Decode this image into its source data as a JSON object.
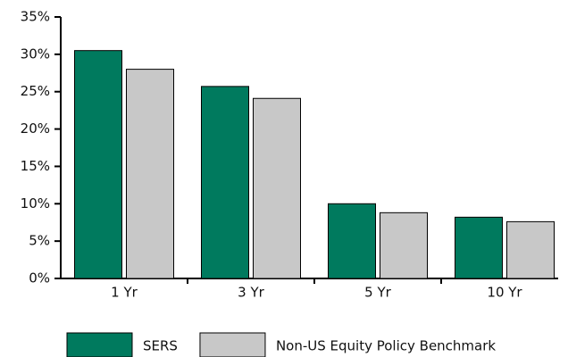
{
  "chart_data": {
    "type": "bar",
    "categories": [
      "1 Yr",
      "3 Yr",
      "5 Yr",
      "10 Yr"
    ],
    "series": [
      {
        "name": "SERS",
        "color": "#007a5e",
        "values": [
          30.5,
          25.7,
          10.0,
          8.2
        ]
      },
      {
        "name": "Non-US Equity Policy Benchmark",
        "color": "#c8c8c8",
        "values": [
          28.0,
          24.1,
          8.8,
          7.6
        ]
      }
    ],
    "ylim": [
      0,
      35
    ],
    "yticks": [
      {
        "value": 0,
        "label": "0%"
      },
      {
        "value": 5,
        "label": "5%"
      },
      {
        "value": 10,
        "label": "10%"
      },
      {
        "value": 15,
        "label": "15%"
      },
      {
        "value": 20,
        "label": "20%"
      },
      {
        "value": 25,
        "label": "25%"
      },
      {
        "value": 30,
        "label": "30%"
      },
      {
        "value": 35,
        "label": "35%"
      }
    ],
    "legend": "bottom"
  }
}
